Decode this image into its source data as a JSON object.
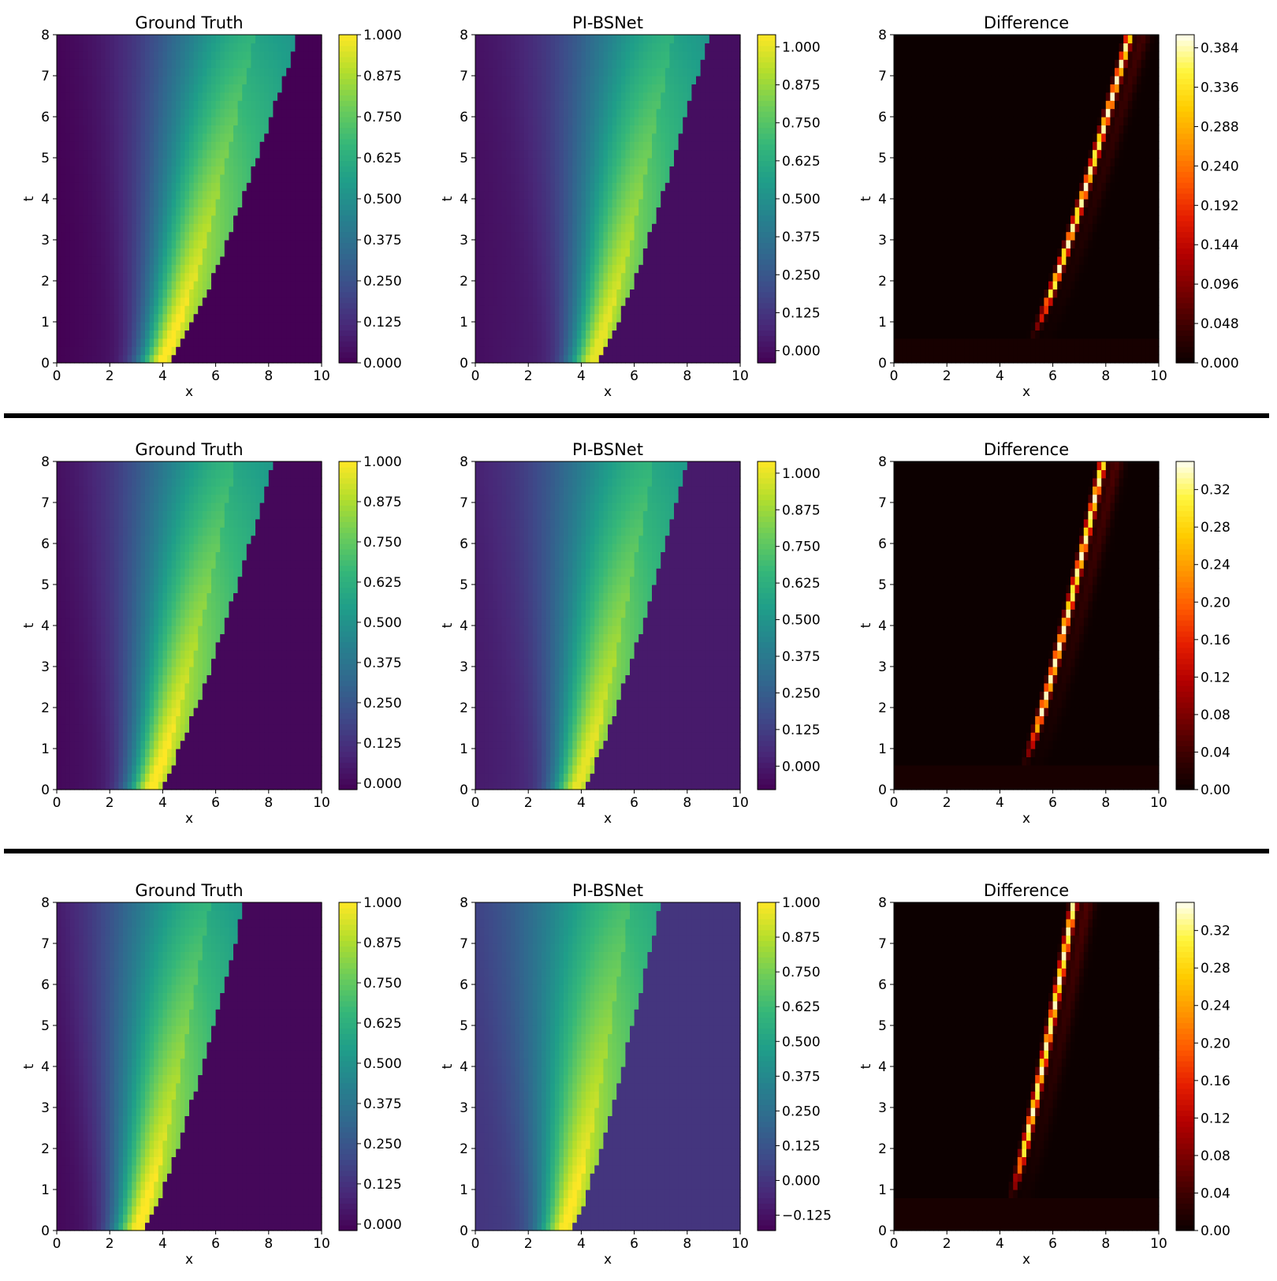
{
  "figure": {
    "panel_titles": [
      "Ground Truth",
      "PI-BSNet",
      "Difference"
    ]
  },
  "chart_data": [
    {
      "row": 0,
      "col": 0,
      "type": "heatmap",
      "title": "Ground Truth",
      "xlabel": "x",
      "ylabel": "t",
      "xlim": [
        0,
        10
      ],
      "ylim": [
        0,
        8
      ],
      "xticks": [
        "0",
        "2",
        "4",
        "6",
        "8",
        "10"
      ],
      "yticks": [
        "0",
        "1",
        "2",
        "3",
        "4",
        "5",
        "6",
        "7",
        "8"
      ],
      "colormap": "viridis",
      "clim": [
        0,
        1.0
      ],
      "colorbar_ticks": [
        {
          "v": 0.0,
          "label": "0.000"
        },
        {
          "v": 0.125,
          "label": "0.125"
        },
        {
          "v": 0.25,
          "label": "0.250"
        },
        {
          "v": 0.375,
          "label": "0.375"
        },
        {
          "v": 0.5,
          "label": "0.500"
        },
        {
          "v": 0.625,
          "label": "0.625"
        },
        {
          "v": 0.75,
          "label": "0.750"
        },
        {
          "v": 0.875,
          "label": "0.875"
        },
        {
          "v": 1.0,
          "label": "1.000"
        }
      ],
      "front": {
        "x0": 4.2,
        "x1": 9.1,
        "peak_x": 3.8,
        "peak_value": 1.0
      }
    },
    {
      "row": 0,
      "col": 1,
      "type": "heatmap",
      "title": "PI-BSNet",
      "xlabel": "x",
      "ylabel": "t",
      "xlim": [
        0,
        10
      ],
      "ylim": [
        0,
        8
      ],
      "xticks": [
        "0",
        "2",
        "4",
        "6",
        "8",
        "10"
      ],
      "yticks": [
        "0",
        "1",
        "2",
        "3",
        "4",
        "5",
        "6",
        "7",
        "8"
      ],
      "colormap": "viridis",
      "clim": [
        -0.04,
        1.04
      ],
      "colorbar_ticks": [
        {
          "v": 0.0,
          "label": "0.000"
        },
        {
          "v": 0.125,
          "label": "0.125"
        },
        {
          "v": 0.25,
          "label": "0.250"
        },
        {
          "v": 0.375,
          "label": "0.375"
        },
        {
          "v": 0.5,
          "label": "0.500"
        },
        {
          "v": 0.625,
          "label": "0.625"
        },
        {
          "v": 0.75,
          "label": "0.750"
        },
        {
          "v": 0.875,
          "label": "0.875"
        },
        {
          "v": 1.0,
          "label": "1.000"
        }
      ],
      "front": {
        "x0": 4.6,
        "x1": 8.8,
        "peak_x": 4.4,
        "peak_value": 1.0
      }
    },
    {
      "row": 0,
      "col": 2,
      "type": "heatmap",
      "title": "Difference",
      "xlabel": "x",
      "ylabel": "t",
      "xlim": [
        0,
        10
      ],
      "ylim": [
        0,
        8
      ],
      "xticks": [
        "0",
        "2",
        "4",
        "6",
        "8",
        "10"
      ],
      "yticks": [
        "0",
        "1",
        "2",
        "3",
        "4",
        "5",
        "6",
        "7",
        "8"
      ],
      "colormap": "hot",
      "clim": [
        0,
        0.4
      ],
      "colorbar_ticks": [
        {
          "v": 0.0,
          "label": "0.000"
        },
        {
          "v": 0.048,
          "label": "0.048"
        },
        {
          "v": 0.096,
          "label": "0.096"
        },
        {
          "v": 0.144,
          "label": "0.144"
        },
        {
          "v": 0.192,
          "label": "0.192"
        },
        {
          "v": 0.24,
          "label": "0.240"
        },
        {
          "v": 0.288,
          "label": "0.288"
        },
        {
          "v": 0.336,
          "label": "0.336"
        },
        {
          "v": 0.384,
          "label": "0.384"
        }
      ],
      "ridge": {
        "x0": 5.2,
        "x1": 8.9,
        "t_start": 1.0,
        "max_value": 0.39
      }
    },
    {
      "row": 1,
      "col": 0,
      "type": "heatmap",
      "title": "Ground Truth",
      "xlabel": "x",
      "ylabel": "t",
      "xlim": [
        0,
        10
      ],
      "ylim": [
        0,
        8
      ],
      "xticks": [
        "0",
        "2",
        "4",
        "6",
        "8",
        "10"
      ],
      "yticks": [
        "0",
        "1",
        "2",
        "3",
        "4",
        "5",
        "6",
        "7",
        "8"
      ],
      "colormap": "viridis",
      "clim": [
        -0.02,
        1.0
      ],
      "colorbar_ticks": [
        {
          "v": 0.0,
          "label": "0.000"
        },
        {
          "v": 0.125,
          "label": "0.125"
        },
        {
          "v": 0.25,
          "label": "0.250"
        },
        {
          "v": 0.375,
          "label": "0.375"
        },
        {
          "v": 0.5,
          "label": "0.500"
        },
        {
          "v": 0.625,
          "label": "0.625"
        },
        {
          "v": 0.75,
          "label": "0.750"
        },
        {
          "v": 0.875,
          "label": "0.875"
        },
        {
          "v": 1.0,
          "label": "1.000"
        }
      ],
      "front": {
        "x0": 3.8,
        "x1": 8.2,
        "peak_x": 3.4,
        "peak_value": 1.0
      }
    },
    {
      "row": 1,
      "col": 1,
      "type": "heatmap",
      "title": "PI-BSNet",
      "xlabel": "x",
      "ylabel": "t",
      "xlim": [
        0,
        10
      ],
      "ylim": [
        0,
        8
      ],
      "xticks": [
        "0",
        "2",
        "4",
        "6",
        "8",
        "10"
      ],
      "yticks": [
        "0",
        "1",
        "2",
        "3",
        "4",
        "5",
        "6",
        "7",
        "8"
      ],
      "colormap": "viridis",
      "clim": [
        -0.08,
        1.04
      ],
      "colorbar_ticks": [
        {
          "v": 0.0,
          "label": "0.000"
        },
        {
          "v": 0.125,
          "label": "0.125"
        },
        {
          "v": 0.25,
          "label": "0.250"
        },
        {
          "v": 0.375,
          "label": "0.375"
        },
        {
          "v": 0.5,
          "label": "0.500"
        },
        {
          "v": 0.625,
          "label": "0.625"
        },
        {
          "v": 0.75,
          "label": "0.750"
        },
        {
          "v": 0.875,
          "label": "0.875"
        },
        {
          "v": 1.0,
          "label": "1.000"
        }
      ],
      "front": {
        "x0": 4.0,
        "x1": 8.0,
        "peak_x": 3.8,
        "peak_value": 1.0
      }
    },
    {
      "row": 1,
      "col": 2,
      "type": "heatmap",
      "title": "Difference",
      "xlabel": "x",
      "ylabel": "t",
      "xlim": [
        0,
        10
      ],
      "ylim": [
        0,
        8
      ],
      "xticks": [
        "0",
        "2",
        "4",
        "6",
        "8",
        "10"
      ],
      "yticks": [
        "0",
        "1",
        "2",
        "3",
        "4",
        "5",
        "6",
        "7",
        "8"
      ],
      "colormap": "hot",
      "clim": [
        0,
        0.35
      ],
      "colorbar_ticks": [
        {
          "v": 0.0,
          "label": "0.00"
        },
        {
          "v": 0.04,
          "label": "0.04"
        },
        {
          "v": 0.08,
          "label": "0.08"
        },
        {
          "v": 0.12,
          "label": "0.12"
        },
        {
          "v": 0.16,
          "label": "0.16"
        },
        {
          "v": 0.2,
          "label": "0.20"
        },
        {
          "v": 0.24,
          "label": "0.24"
        },
        {
          "v": 0.28,
          "label": "0.28"
        },
        {
          "v": 0.32,
          "label": "0.32"
        }
      ],
      "ridge": {
        "x0": 4.9,
        "x1": 7.9,
        "t_start": 1.0,
        "max_value": 0.34
      }
    },
    {
      "row": 2,
      "col": 0,
      "type": "heatmap",
      "title": "Ground Truth",
      "xlabel": "x",
      "ylabel": "t",
      "xlim": [
        0,
        10
      ],
      "ylim": [
        0,
        8
      ],
      "xticks": [
        "0",
        "2",
        "4",
        "6",
        "8",
        "10"
      ],
      "yticks": [
        "0",
        "1",
        "2",
        "3",
        "4",
        "5",
        "6",
        "7",
        "8"
      ],
      "colormap": "viridis",
      "clim": [
        -0.02,
        1.0
      ],
      "colorbar_ticks": [
        {
          "v": 0.0,
          "label": "0.000"
        },
        {
          "v": 0.125,
          "label": "0.125"
        },
        {
          "v": 0.25,
          "label": "0.250"
        },
        {
          "v": 0.375,
          "label": "0.375"
        },
        {
          "v": 0.5,
          "label": "0.500"
        },
        {
          "v": 0.625,
          "label": "0.625"
        },
        {
          "v": 0.75,
          "label": "0.750"
        },
        {
          "v": 0.875,
          "label": "0.875"
        },
        {
          "v": 1.0,
          "label": "1.000"
        }
      ],
      "front": {
        "x0": 3.3,
        "x1": 7.1,
        "peak_x": 2.8,
        "peak_value": 1.0
      }
    },
    {
      "row": 2,
      "col": 1,
      "type": "heatmap",
      "title": "PI-BSNet",
      "xlabel": "x",
      "ylabel": "t",
      "xlim": [
        0,
        10
      ],
      "ylim": [
        0,
        8
      ],
      "xticks": [
        "0",
        "2",
        "4",
        "6",
        "8",
        "10"
      ],
      "yticks": [
        "0",
        "1",
        "2",
        "3",
        "4",
        "5",
        "6",
        "7",
        "8"
      ],
      "colormap": "viridis",
      "clim": [
        -0.18,
        1.0
      ],
      "colorbar_ticks": [
        {
          "v": -0.125,
          "label": "−0.125"
        },
        {
          "v": 0.0,
          "label": "0.000"
        },
        {
          "v": 0.125,
          "label": "0.125"
        },
        {
          "v": 0.25,
          "label": "0.250"
        },
        {
          "v": 0.375,
          "label": "0.375"
        },
        {
          "v": 0.5,
          "label": "0.500"
        },
        {
          "v": 0.625,
          "label": "0.625"
        },
        {
          "v": 0.75,
          "label": "0.750"
        },
        {
          "v": 0.875,
          "label": "0.875"
        },
        {
          "v": 1.0,
          "label": "1.000"
        }
      ],
      "front": {
        "x0": 3.6,
        "x1": 7.0,
        "peak_x": 3.2,
        "peak_value": 1.0
      }
    },
    {
      "row": 2,
      "col": 2,
      "type": "heatmap",
      "title": "Difference",
      "xlabel": "x",
      "ylabel": "t",
      "xlim": [
        0,
        10
      ],
      "ylim": [
        0,
        8
      ],
      "xticks": [
        "0",
        "2",
        "4",
        "6",
        "8",
        "10"
      ],
      "yticks": [
        "0",
        "1",
        "2",
        "3",
        "4",
        "5",
        "6",
        "7",
        "8"
      ],
      "colormap": "hot",
      "clim": [
        0,
        0.35
      ],
      "colorbar_ticks": [
        {
          "v": 0.0,
          "label": "0.00"
        },
        {
          "v": 0.04,
          "label": "0.04"
        },
        {
          "v": 0.08,
          "label": "0.08"
        },
        {
          "v": 0.12,
          "label": "0.12"
        },
        {
          "v": 0.16,
          "label": "0.16"
        },
        {
          "v": 0.2,
          "label": "0.20"
        },
        {
          "v": 0.24,
          "label": "0.24"
        },
        {
          "v": 0.28,
          "label": "0.28"
        },
        {
          "v": 0.32,
          "label": "0.32"
        }
      ],
      "ridge": {
        "x0": 4.4,
        "x1": 6.8,
        "t_start": 1.3,
        "max_value": 0.34
      }
    }
  ]
}
